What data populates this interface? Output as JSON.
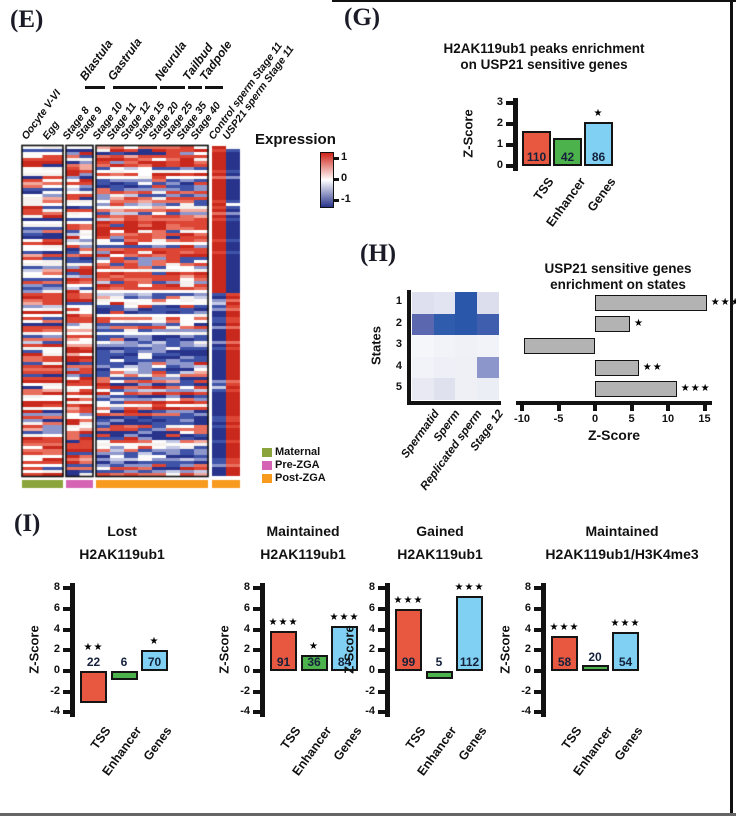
{
  "panel_labels": {
    "e": "(E)",
    "g": "(G)",
    "h": "(H)",
    "i": "(I)"
  },
  "chart_data": [
    {
      "id": "expression-heatmap",
      "type": "heatmap",
      "legend_title": "Expression",
      "colorbar": {
        "ticks": [
          "1",
          "0",
          "-1"
        ],
        "colors": [
          "#d0241b",
          "#ffffff",
          "#28348c"
        ]
      },
      "columns": [
        "Oocyte V-VI",
        "Egg",
        "Stage 8",
        "Stage 9",
        "Stage 10",
        "Stage 11",
        "Stage 12",
        "Stage 15",
        "Stage 20",
        "Stage 25",
        "Stage 35",
        "Stage 40",
        "Control sperm Stage 11",
        "USP21 sperm Stage 11"
      ],
      "column_groups": [
        {
          "label": "Blastula"
        },
        {
          "label": "Gastrula"
        },
        {
          "label": "Neurula"
        },
        {
          "label": "Tailbud"
        },
        {
          "label": "Tadpole"
        }
      ],
      "row_categories": [
        {
          "label": "Maternal",
          "color": "#8ca43c"
        },
        {
          "label": "Pre-ZGA",
          "color": "#d664b5"
        },
        {
          "label": "Post-ZGA",
          "color": "#f79a1e"
        }
      ],
      "pattern": {
        "rows": 110,
        "split": 0.44,
        "palette": {
          "warm": [
            "#c9281c",
            "#dd4534",
            "#e96f5e",
            "#f2a99e"
          ],
          "cool": [
            "#28348c",
            "#3f54a8",
            "#8e97cc",
            "#c6cbe6"
          ],
          "neutral": [
            "#fcfbfa",
            "#f4f1ef",
            "#ffffff"
          ]
        },
        "blocks": [
          {
            "cols": 2,
            "bands": [
              {
                "until": 0.44,
                "warm": 0.36,
                "cool": 0.36
              },
              {
                "until": 1,
                "warm": 0.58,
                "cool": 0.18
              }
            ]
          },
          {
            "cols": 2,
            "bands": [
              {
                "until": 0.44,
                "warm": 0.4,
                "cool": 0.34
              },
              {
                "until": 1,
                "warm": 0.62,
                "cool": 0.15
              }
            ]
          },
          {
            "cols": 8,
            "bands": [
              {
                "until": 0.44,
                "warm": 0.52,
                "cool": 0.24
              },
              {
                "until": 1,
                "warm": 0.16,
                "cool": 0.6
              }
            ]
          },
          {
            "cols": 2,
            "mode": "split"
          }
        ]
      }
    },
    {
      "id": "h2ak119ub1-peaks-enrichment",
      "type": "bar",
      "title": [
        "H2AK119ub1 peaks enrichment",
        "on USP21 sensitive genes"
      ],
      "ylabel": "Z-Score",
      "ylim": [
        0,
        3
      ],
      "yticks": [
        3,
        2,
        1,
        0
      ],
      "categories": [
        "TSS",
        "Enhancer",
        "Genes"
      ],
      "values": [
        1.65,
        1.35,
        2.1
      ],
      "counts": [
        110,
        42,
        86
      ],
      "stars": [
        "",
        "",
        "*"
      ],
      "colors": [
        "#e8573f",
        "#4cb24c",
        "#7fd0f2"
      ]
    },
    {
      "id": "states-heatmap",
      "type": "heatmap",
      "ylabel": "States",
      "rows": [
        "1",
        "2",
        "3",
        "4",
        "5"
      ],
      "columns": [
        "Spermatid",
        "Sperm",
        "Replicated sperm",
        "Stage 12"
      ],
      "cell_colors": [
        [
          "#dfe0ef",
          "#e3e4f1",
          "#2b57ab",
          "#dcdeee"
        ],
        [
          "#5b68b0",
          "#2f5cad",
          "#2b57ab",
          "#3f5fae"
        ],
        [
          "#f5f6fa",
          "#f2f3f8",
          "#f0f1f7",
          "#f2f3f8"
        ],
        [
          "#f2f3f9",
          "#eff0f7",
          "#eef0f6",
          "#8d96cb"
        ],
        [
          "#e8e9f3",
          "#dfe1ee",
          "#eef0f6",
          "#eceef5"
        ]
      ]
    },
    {
      "id": "usp21-genes-enrichment-states",
      "type": "bar-horizontal",
      "title": [
        "USP21 sensitive genes",
        "enrichment on states"
      ],
      "xlabel": "Z-Score",
      "xlim": [
        -10,
        15
      ],
      "xticks": [
        -10,
        -5,
        0,
        5,
        10,
        15
      ],
      "categories": [
        "1",
        "2",
        "3",
        "4",
        "5"
      ],
      "values": [
        15.3,
        4.8,
        -9.7,
        6.0,
        11.2
      ],
      "stars": [
        "***",
        "*",
        "",
        "**",
        "***"
      ],
      "bar_color": "#b3b3b3"
    },
    {
      "id": "lost-h2ak119ub1",
      "type": "bar",
      "title": [
        "Lost",
        "H2AK119ub1"
      ],
      "ylabel": "Z-Score",
      "ylim": [
        -4,
        8
      ],
      "yticks": [
        8,
        6,
        4,
        2,
        0,
        -2,
        -4
      ],
      "categories": [
        "TSS",
        "Enhancer",
        "Genes"
      ],
      "values": [
        -3.1,
        -0.9,
        2.0
      ],
      "counts": [
        22,
        6,
        70
      ],
      "stars": [
        "**",
        "",
        "*"
      ],
      "colors": [
        "#e8573f",
        "#4cb24c",
        "#7fd0f2"
      ]
    },
    {
      "id": "maintained-h2ak119ub1",
      "type": "bar",
      "title": [
        "Maintained",
        "H2AK119ub1"
      ],
      "ylabel": "Z-Score",
      "ylim": [
        -4,
        8
      ],
      "yticks": [
        8,
        6,
        4,
        2,
        0,
        -2,
        -4
      ],
      "categories": [
        "TSS",
        "Enhancer",
        "Genes"
      ],
      "values": [
        3.9,
        1.5,
        4.3
      ],
      "counts": [
        91,
        36,
        84
      ],
      "stars": [
        "***",
        "*",
        "***"
      ],
      "colors": [
        "#e8573f",
        "#4cb24c",
        "#7fd0f2"
      ]
    },
    {
      "id": "gained-h2ak119ub1",
      "type": "bar",
      "title": [
        "Gained",
        "H2AK119ub1"
      ],
      "ylabel": "Z-Score",
      "ylim": [
        -4,
        8
      ],
      "yticks": [
        8,
        6,
        4,
        2,
        0,
        -2,
        -4
      ],
      "categories": [
        "TSS",
        "Enhancer",
        "Genes"
      ],
      "values": [
        6.0,
        -0.8,
        7.2
      ],
      "counts": [
        99,
        5,
        112
      ],
      "stars": [
        "***",
        "",
        "***"
      ],
      "colors": [
        "#e8573f",
        "#4cb24c",
        "#7fd0f2"
      ]
    },
    {
      "id": "maintained-h2ak119ub1-h3k4me3",
      "type": "bar",
      "title": [
        "Maintained",
        "H2AK119ub1/H3K4me3"
      ],
      "ylabel": "Z-Score",
      "ylim": [
        -4,
        8
      ],
      "yticks": [
        8,
        6,
        4,
        2,
        0,
        -2,
        -4
      ],
      "categories": [
        "TSS",
        "Enhancer",
        "Genes"
      ],
      "values": [
        3.4,
        0.55,
        3.8
      ],
      "counts": [
        58,
        20,
        54
      ],
      "stars": [
        "***",
        "",
        "***"
      ],
      "colors": [
        "#e8573f",
        "#4cb24c",
        "#7fd0f2"
      ]
    }
  ]
}
